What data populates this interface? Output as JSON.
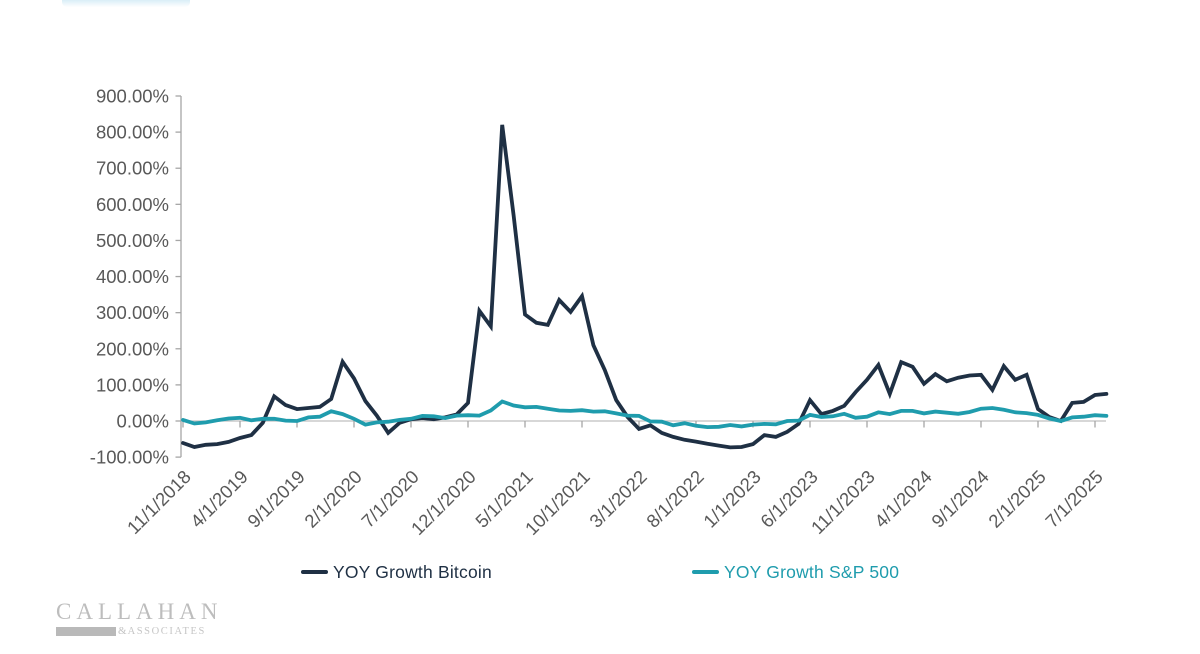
{
  "page": {
    "background": "#ffffff"
  },
  "decor": {
    "top_left_bar": "light-blue-fragment"
  },
  "logo": {
    "line1": "CALLAHAN",
    "amp": "&",
    "line2": "ASSOCIATES"
  },
  "axis_style": {
    "label_color": "#595959",
    "axis_line_color": "#bfbfbf",
    "tick_color": "#a6a6a6"
  },
  "chart_data": {
    "type": "line",
    "title": "",
    "xlabel": "",
    "ylabel": "",
    "grid": false,
    "legend_position": "bottom",
    "ylim": [
      -100,
      900
    ],
    "y_ticks": [
      900,
      800,
      700,
      600,
      500,
      400,
      300,
      200,
      100,
      0,
      -100
    ],
    "y_tick_labels": [
      "900.00%",
      "800.00%",
      "700.00%",
      "600.00%",
      "500.00%",
      "400.00%",
      "300.00%",
      "200.00%",
      "100.00%",
      "0.00%",
      "-100.00%"
    ],
    "x_tick_labels": [
      "11/1/2018",
      "4/1/2019",
      "9/1/2019",
      "2/1/2020",
      "7/1/2020",
      "12/1/2020",
      "5/1/2021",
      "10/1/2021",
      "3/1/2022",
      "8/1/2022",
      "1/1/2023",
      "6/1/2023",
      "11/1/2023",
      "4/1/2024",
      "9/1/2024",
      "2/1/2025",
      "7/1/2025"
    ],
    "x_tick_every_n_points": 5,
    "x_labels_rotation_deg": -45,
    "x": [
      "11/1/2018",
      "12/1/2018",
      "1/1/2019",
      "2/1/2019",
      "3/1/2019",
      "4/1/2019",
      "5/1/2019",
      "6/1/2019",
      "7/1/2019",
      "8/1/2019",
      "9/1/2019",
      "10/1/2019",
      "11/1/2019",
      "12/1/2019",
      "1/1/2020",
      "2/1/2020",
      "3/1/2020",
      "4/1/2020",
      "5/1/2020",
      "6/1/2020",
      "7/1/2020",
      "8/1/2020",
      "9/1/2020",
      "10/1/2020",
      "11/1/2020",
      "12/1/2020",
      "1/1/2021",
      "2/1/2021",
      "3/1/2021",
      "4/1/2021",
      "5/1/2021",
      "6/1/2021",
      "7/1/2021",
      "8/1/2021",
      "9/1/2021",
      "10/1/2021",
      "11/1/2021",
      "12/1/2021",
      "1/1/2022",
      "2/1/2022",
      "3/1/2022",
      "4/1/2022",
      "5/1/2022",
      "6/1/2022",
      "7/1/2022",
      "8/1/2022",
      "9/1/2022",
      "10/1/2022",
      "11/1/2022",
      "12/1/2022",
      "1/1/2023",
      "2/1/2023",
      "3/1/2023",
      "4/1/2023",
      "5/1/2023",
      "6/1/2023",
      "7/1/2023",
      "8/1/2023",
      "9/1/2023",
      "10/1/2023",
      "11/1/2023",
      "12/1/2023",
      "1/1/2024",
      "2/1/2024",
      "3/1/2024",
      "4/1/2024",
      "5/1/2024",
      "6/1/2024",
      "7/1/2024",
      "8/1/2024",
      "9/1/2024",
      "10/1/2024",
      "11/1/2024",
      "12/1/2024",
      "1/1/2025",
      "2/1/2025",
      "3/1/2025",
      "4/1/2025",
      "5/1/2025",
      "6/1/2025",
      "7/1/2025",
      "8/1/2025"
    ],
    "series": [
      {
        "name": "YOY Growth Bitcoin",
        "color": "#1f3044",
        "unit": "percent",
        "values": [
          -61,
          -72,
          -66,
          -64,
          -58,
          -47,
          -39,
          -5,
          68,
          44,
          33,
          36,
          39,
          61,
          164,
          118,
          55,
          15,
          -33,
          -5,
          5,
          8,
          5,
          10,
          18,
          50,
          305,
          262,
          820,
          570,
          295,
          272,
          266,
          335,
          302,
          346,
          210,
          141,
          58,
          11,
          -22,
          -12,
          -33,
          -44,
          -52,
          -57,
          -63,
          -68,
          -73,
          -72,
          -64,
          -39,
          -44,
          -30,
          -8,
          58,
          19,
          28,
          42,
          80,
          114,
          155,
          75,
          163,
          150,
          103,
          130,
          110,
          120,
          126,
          128,
          86,
          152,
          114,
          128,
          33,
          11,
          0,
          50,
          53,
          72,
          75
        ]
      },
      {
        "name": "YOY Growth S&P 500",
        "color": "#1f9cad",
        "unit": "percent",
        "values": [
          3,
          -7,
          -4,
          2,
          7,
          9,
          2,
          6,
          6,
          1,
          0,
          10,
          12,
          27,
          19,
          6,
          -10,
          -4,
          -2,
          3,
          6,
          14,
          13,
          8,
          15,
          16,
          15,
          29,
          54,
          43,
          38,
          39,
          34,
          29,
          28,
          30,
          26,
          27,
          21,
          15,
          14,
          -1,
          -2,
          -12,
          -6,
          -13,
          -17,
          -16,
          -11,
          -15,
          -10,
          -8,
          -9,
          0,
          1,
          17,
          11,
          13,
          20,
          9,
          12,
          24,
          19,
          28,
          28,
          21,
          26,
          23,
          20,
          25,
          34,
          36,
          31,
          24,
          22,
          17,
          7,
          0,
          10,
          12,
          16,
          14
        ]
      }
    ]
  }
}
